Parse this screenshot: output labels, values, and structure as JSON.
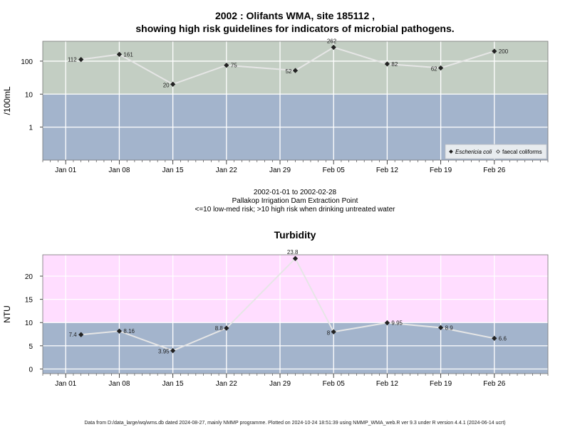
{
  "chart_data": [
    {
      "type": "line",
      "title_line1": "2002 : Olifants WMA, site 185112 ,",
      "title_line2": "showing high risk guidelines for indicators of microbial pathogens.",
      "ylabel": "/100mL",
      "yscale": "log",
      "ylim": [
        0.1,
        400
      ],
      "yticks": [
        {
          "value": 1,
          "label": "1"
        },
        {
          "value": 10,
          "label": "10"
        },
        {
          "value": 100,
          "label": "100"
        }
      ],
      "risk_threshold": 10,
      "risk_colors": {
        "low": "#a3b4cc",
        "high": "#c3cec3"
      },
      "series": [
        {
          "name": "Eschericia coli",
          "marker": "filled-diamond",
          "points": [
            {
              "x": "2002-01-03",
              "y": 112,
              "label": "112"
            },
            {
              "x": "2002-01-08",
              "y": 161,
              "label": "161"
            },
            {
              "x": "2002-01-15",
              "y": 20,
              "label": "20"
            },
            {
              "x": "2002-01-22",
              "y": 75,
              "label": "75"
            },
            {
              "x": "2002-01-31",
              "y": 52,
              "label": "52"
            },
            {
              "x": "2002-02-05",
              "y": 262,
              "label": "262"
            },
            {
              "x": "2002-02-12",
              "y": 82,
              "label": "82"
            },
            {
              "x": "2002-02-19",
              "y": 62,
              "label": "62"
            },
            {
              "x": "2002-02-26",
              "y": 200,
              "label": "200"
            }
          ]
        },
        {
          "name": "faecal coliforms",
          "marker": "open-diamond",
          "points": []
        }
      ],
      "legend_position": "bottom-right"
    },
    {
      "type": "line",
      "title": "Turbidity",
      "ylabel": "NTU",
      "yscale": "linear",
      "ylim": [
        -1,
        24.6
      ],
      "yticks": [
        {
          "value": 0,
          "label": "0"
        },
        {
          "value": 5,
          "label": "5"
        },
        {
          "value": 10,
          "label": "10"
        },
        {
          "value": 15,
          "label": "15"
        },
        {
          "value": 20,
          "label": "20"
        }
      ],
      "risk_threshold": 10,
      "risk_colors": {
        "low": "#a3b4cc",
        "high": "#ffddff"
      },
      "series": [
        {
          "name": "Turbidity",
          "marker": "filled-diamond",
          "points": [
            {
              "x": "2002-01-03",
              "y": 7.4,
              "label": "7.4"
            },
            {
              "x": "2002-01-08",
              "y": 8.16,
              "label": "8.16"
            },
            {
              "x": "2002-01-15",
              "y": 3.95,
              "label": "3.95"
            },
            {
              "x": "2002-01-22",
              "y": 8.8,
              "label": "8.8"
            },
            {
              "x": "2002-01-31",
              "y": 23.8,
              "label": "23.8"
            },
            {
              "x": "2002-02-05",
              "y": 8,
              "label": "8"
            },
            {
              "x": "2002-02-12",
              "y": 9.95,
              "label": "9.95"
            },
            {
              "x": "2002-02-19",
              "y": 8.9,
              "label": "8.9"
            },
            {
              "x": "2002-02-26",
              "y": 6.6,
              "label": "6.6"
            }
          ]
        }
      ]
    }
  ],
  "xaxis": {
    "range": [
      "2001-12-29",
      "2002-03-05"
    ],
    "ticks": [
      {
        "date": "2002-01-01",
        "label": "Jan 01"
      },
      {
        "date": "2002-01-08",
        "label": "Jan 08"
      },
      {
        "date": "2002-01-15",
        "label": "Jan 15"
      },
      {
        "date": "2002-01-22",
        "label": "Jan 22"
      },
      {
        "date": "2002-01-29",
        "label": "Jan 29"
      },
      {
        "date": "2002-02-05",
        "label": "Feb 05"
      },
      {
        "date": "2002-02-12",
        "label": "Feb 12"
      },
      {
        "date": "2002-02-19",
        "label": "Feb 19"
      },
      {
        "date": "2002-02-26",
        "label": "Feb 26"
      }
    ]
  },
  "middle_text": {
    "date_range": "2002-01-01 to 2002-02-28",
    "site_name": "Pallakop Irrigation Dam Extraction Point",
    "risk_note": "<=10 low-med risk; >10 high risk when drinking untreated water"
  },
  "footer": "Data from D:/data_large/wq/wms.db dated 2024-08-27, mainly NMMP programme. Plotted on 2024-10-24 18:51:39 using NMMP_WMA_web.R ver 9.3 under R version 4.4.1 (2024-06-14 ucrt)"
}
